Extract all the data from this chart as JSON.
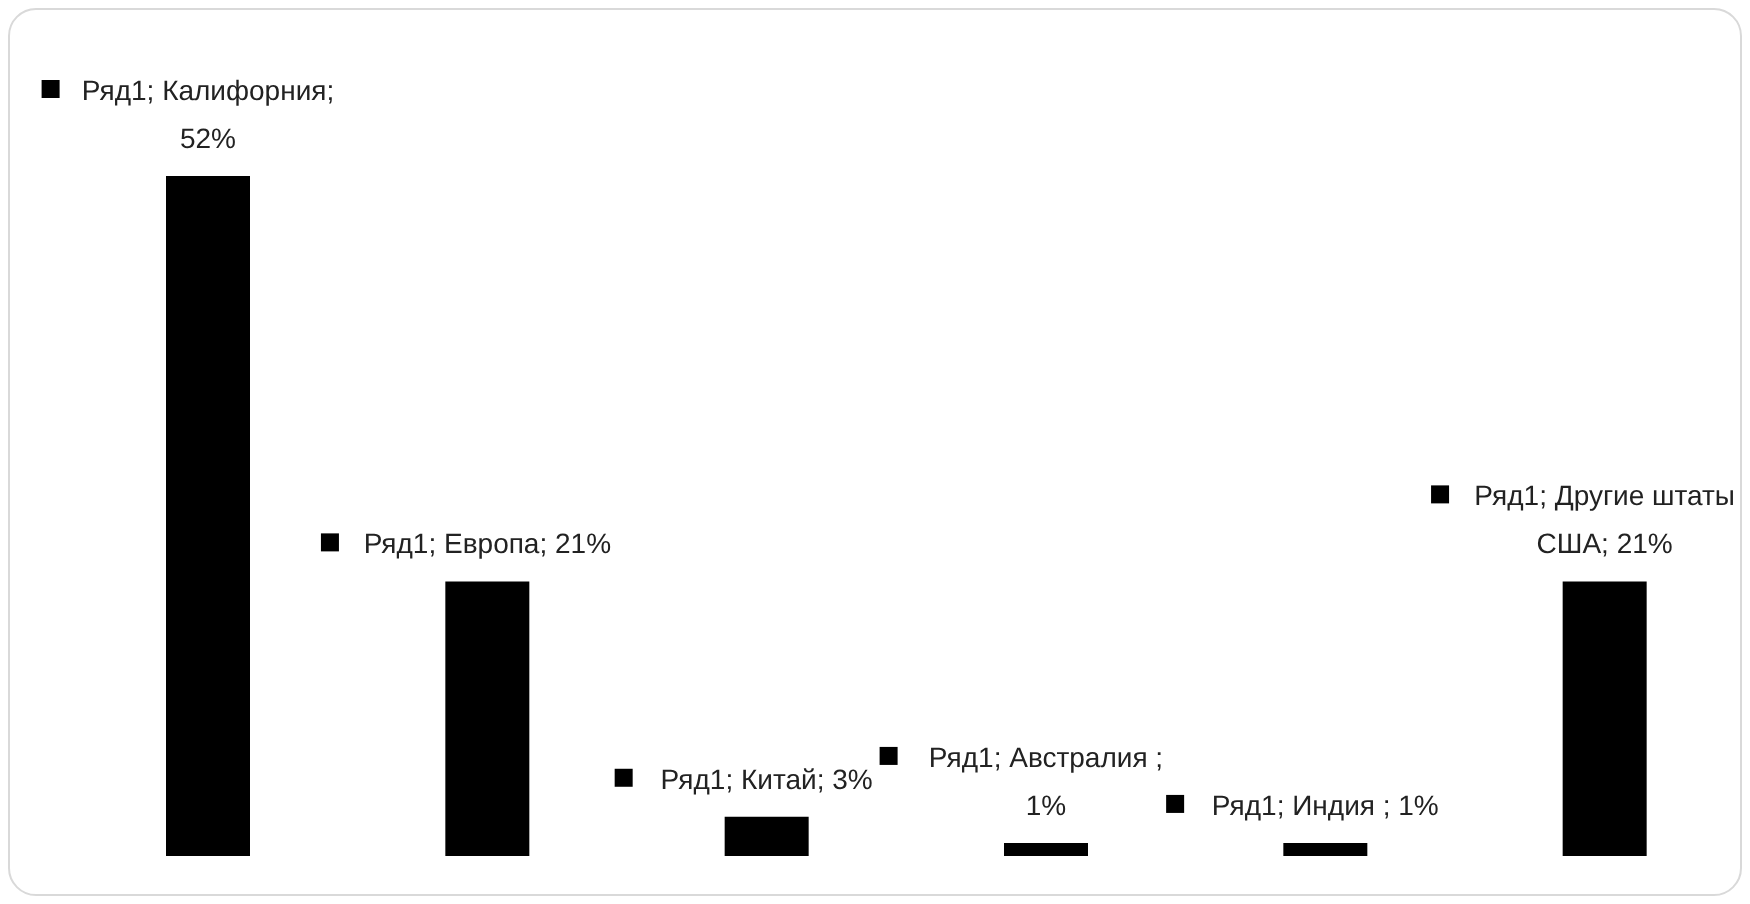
{
  "chart_data": {
    "type": "bar",
    "categories": [
      null,
      null,
      null,
      null,
      null,
      null
    ],
    "series": [
      {
        "color": "#000000",
        "values": [
          52,
          21,
          3,
          1,
          1,
          21
        ],
        "value_labels": [
          "Ряд1; Калифорния; 52%",
          "Ряд1; Европа; 21%",
          "Ряд1; Китай; 3%",
          "Ряд1; Австралия ; 1%",
          "Ряд1; Индия ; 1%",
          "Ряд1; Другие штаты США; 21%"
        ]
      }
    ],
    "grid": false,
    "legend": false
  }
}
